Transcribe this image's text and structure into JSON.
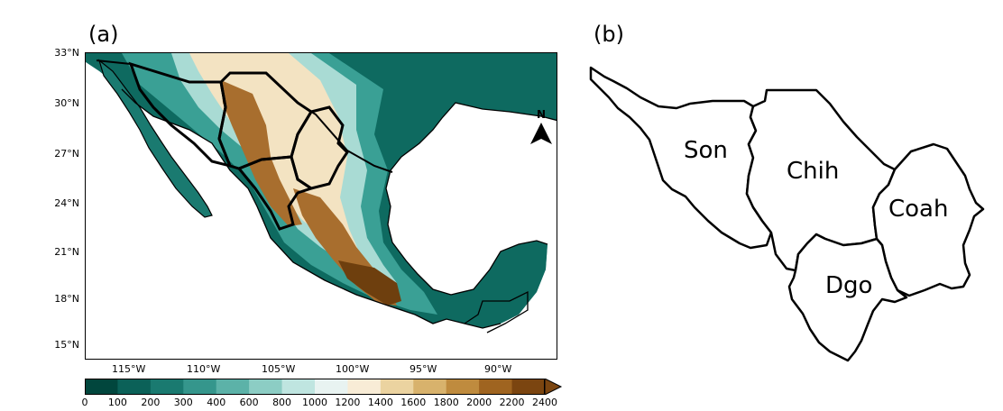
{
  "panel_a": {
    "label": "(a)",
    "north_arrow": "N",
    "lat_labels": [
      "33°N",
      "30°N",
      "27°N",
      "24°N",
      "21°N",
      "18°N",
      "15°N"
    ],
    "lon_labels": [
      "115°W",
      "110°W",
      "105°W",
      "100°W",
      "95°W",
      "90°W"
    ],
    "colorbar": {
      "ticks": [
        "0",
        "100",
        "200",
        "300",
        "400",
        "600",
        "800",
        "1000",
        "1200",
        "1400",
        "1600",
        "1800",
        "2000",
        "2200",
        "2400"
      ],
      "colors": [
        "#01463d",
        "#0b6158",
        "#1a7a70",
        "#35968c",
        "#5cb2a8",
        "#8ccdc4",
        "#bfe5e0",
        "#e8f3f1",
        "#f8ecd6",
        "#ebd3a0",
        "#d8b26c",
        "#bf8b3e",
        "#9f6420",
        "#7b4510"
      ],
      "extend": "max"
    }
  },
  "panel_b": {
    "label": "(b)",
    "states": [
      "Son",
      "Chih",
      "Coah",
      "Dgo"
    ]
  }
}
